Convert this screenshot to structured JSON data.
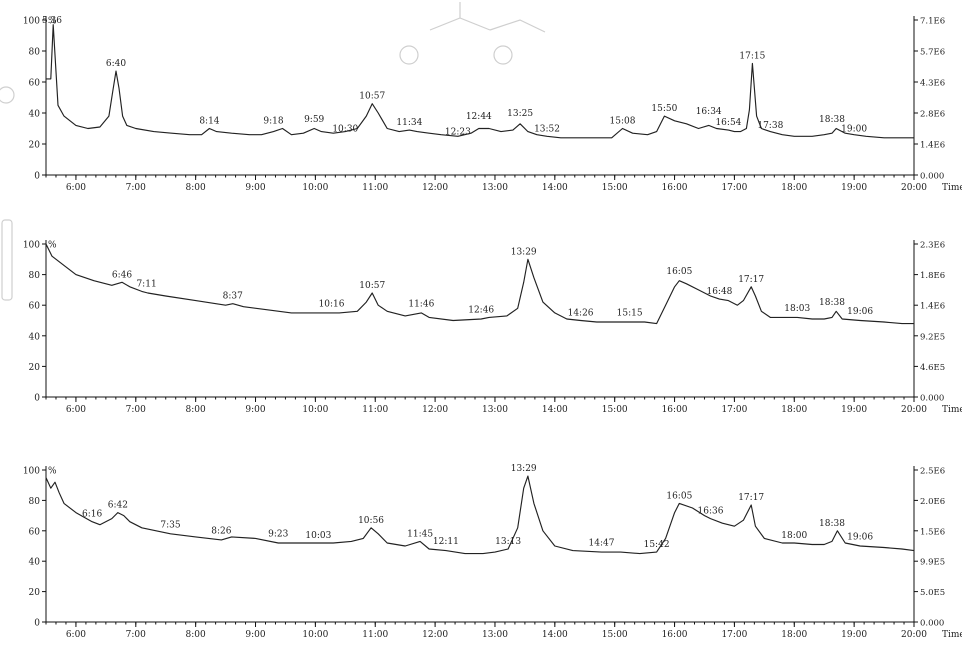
{
  "chart_data": [
    {
      "type": "line",
      "x_label": "Time",
      "xlim": [
        5.5,
        20.0
      ],
      "ylim": [
        0,
        100
      ],
      "left_ticks": [
        "0",
        "20",
        "40",
        "60",
        "80",
        "100"
      ],
      "right_ticks": [
        "0.000",
        "1.4E6",
        "2.8E6",
        "4.3E6",
        "5.7E6",
        "7.1E6"
      ],
      "x_ticks": [
        "6:00",
        "7:00",
        "8:00",
        "9:00",
        "10:00",
        "11:00",
        "12:00",
        "13:00",
        "14:00",
        "15:00",
        "16:00",
        "17:00",
        "18:00",
        "19:00",
        "20:00"
      ],
      "corner_label": "%",
      "series": [
        {
          "x": [
            5.5,
            5.58,
            5.62,
            5.7,
            5.8,
            6.0,
            6.2,
            6.4,
            6.55,
            6.62,
            6.67,
            6.72,
            6.78,
            6.85,
            7.0,
            7.3,
            7.6,
            7.9,
            8.1,
            8.23,
            8.35,
            8.6,
            8.9,
            9.1,
            9.3,
            9.45,
            9.6,
            9.8,
            9.98,
            10.1,
            10.3,
            10.5,
            10.7,
            10.85,
            10.95,
            11.05,
            11.2,
            11.4,
            11.57,
            11.7,
            11.9,
            12.1,
            12.38,
            12.6,
            12.73,
            12.9,
            13.1,
            13.3,
            13.42,
            13.55,
            13.7,
            13.87,
            14.1,
            14.4,
            14.7,
            14.95,
            15.13,
            15.3,
            15.55,
            15.7,
            15.83,
            16.0,
            16.2,
            16.4,
            16.57,
            16.7,
            16.9,
            17.0,
            17.1,
            17.2,
            17.25,
            17.3,
            17.37,
            17.45,
            17.6,
            17.8,
            18.0,
            18.3,
            18.5,
            18.63,
            18.7,
            18.85,
            19.0,
            19.2,
            19.5,
            19.8,
            20.0
          ],
          "y": [
            62,
            62,
            97,
            45,
            38,
            32,
            30,
            31,
            38,
            55,
            67,
            56,
            38,
            32,
            30,
            28,
            27,
            26,
            26,
            30,
            28,
            27,
            26,
            26,
            28,
            30,
            26,
            27,
            30,
            28,
            27,
            28,
            30,
            38,
            46,
            40,
            30,
            28,
            29,
            28,
            27,
            26,
            25,
            27,
            30,
            30,
            28,
            29,
            33,
            28,
            26,
            25,
            24,
            24,
            24,
            24,
            30,
            27,
            26,
            28,
            38,
            35,
            33,
            30,
            32,
            30,
            29,
            28,
            28,
            30,
            42,
            72,
            38,
            30,
            28,
            26,
            25,
            25,
            26,
            27,
            30,
            27,
            26,
            25,
            24,
            24,
            24
          ]
        }
      ],
      "annotations": [
        {
          "x": 5.6,
          "y": 95,
          "text": "5.36"
        },
        {
          "x": 6.67,
          "y": 67,
          "text": "6:40"
        },
        {
          "x": 8.23,
          "y": 30,
          "text": "8:14"
        },
        {
          "x": 9.3,
          "y": 30,
          "text": "9:18"
        },
        {
          "x": 9.98,
          "y": 31,
          "text": "9:59"
        },
        {
          "x": 10.5,
          "y": 25,
          "text": "10:30"
        },
        {
          "x": 10.95,
          "y": 46,
          "text": "10:57"
        },
        {
          "x": 11.57,
          "y": 29,
          "text": "11:34"
        },
        {
          "x": 12.38,
          "y": 23,
          "text": "12:23"
        },
        {
          "x": 12.73,
          "y": 33,
          "text": "12:44"
        },
        {
          "x": 13.42,
          "y": 35,
          "text": "13:25"
        },
        {
          "x": 13.87,
          "y": 25,
          "text": "13:52"
        },
        {
          "x": 15.13,
          "y": 30,
          "text": "15:08"
        },
        {
          "x": 15.83,
          "y": 38,
          "text": "15:50"
        },
        {
          "x": 16.57,
          "y": 36,
          "text": "16:34"
        },
        {
          "x": 16.9,
          "y": 29,
          "text": "16:54"
        },
        {
          "x": 17.3,
          "y": 72,
          "text": "17:15"
        },
        {
          "x": 17.6,
          "y": 27,
          "text": "17:38"
        },
        {
          "x": 18.63,
          "y": 31,
          "text": "18:38"
        },
        {
          "x": 19.0,
          "y": 25,
          "text": "19:00"
        }
      ]
    },
    {
      "type": "line",
      "x_label": "Time",
      "xlim": [
        5.5,
        20.0
      ],
      "ylim": [
        0,
        100
      ],
      "left_ticks": [
        "0",
        "20",
        "40",
        "60",
        "80",
        "100"
      ],
      "right_ticks": [
        "0.000",
        "4.6E5",
        "9.2E5",
        "1.4E6",
        "1.8E6",
        "2.3E6"
      ],
      "x_ticks": [
        "6:00",
        "7:00",
        "8:00",
        "9:00",
        "10:00",
        "11:00",
        "12:00",
        "13:00",
        "14:00",
        "15:00",
        "16:00",
        "17:00",
        "18:00",
        "19:00",
        "20:00"
      ],
      "corner_label": "%",
      "series": [
        {
          "x": [
            5.5,
            5.6,
            5.8,
            6.0,
            6.3,
            6.6,
            6.77,
            6.9,
            7.1,
            7.2,
            7.5,
            8.0,
            8.5,
            8.62,
            8.8,
            9.2,
            9.6,
            10.0,
            10.2,
            10.4,
            10.7,
            10.85,
            10.95,
            11.05,
            11.2,
            11.5,
            11.77,
            11.9,
            12.3,
            12.77,
            12.9,
            13.2,
            13.38,
            13.48,
            13.55,
            13.65,
            13.8,
            14.0,
            14.2,
            14.43,
            14.7,
            15.0,
            15.25,
            15.5,
            15.7,
            15.85,
            16.0,
            16.08,
            16.2,
            16.4,
            16.6,
            16.75,
            16.9,
            17.05,
            17.15,
            17.28,
            17.35,
            17.45,
            17.6,
            17.8,
            18.05,
            18.3,
            18.5,
            18.63,
            18.7,
            18.8,
            19.1,
            19.5,
            19.8,
            20.0
          ],
          "y": [
            100,
            92,
            86,
            80,
            76,
            73,
            75,
            72,
            69,
            68,
            66,
            63,
            60,
            61,
            59,
            57,
            55,
            55,
            55,
            55,
            56,
            62,
            68,
            60,
            56,
            53,
            55,
            52,
            50,
            51,
            52,
            53,
            58,
            75,
            90,
            78,
            62,
            55,
            51,
            50,
            49,
            49,
            49,
            49,
            48,
            60,
            72,
            76,
            74,
            70,
            66,
            64,
            63,
            60,
            63,
            72,
            66,
            56,
            52,
            52,
            52,
            51,
            51,
            52,
            56,
            51,
            50,
            49,
            48,
            48
          ]
        }
      ],
      "annotations": [
        {
          "x": 6.77,
          "y": 75,
          "text": "6:46"
        },
        {
          "x": 7.18,
          "y": 69,
          "text": "7:11"
        },
        {
          "x": 8.62,
          "y": 61,
          "text": "8:37"
        },
        {
          "x": 10.27,
          "y": 56,
          "text": "10:16"
        },
        {
          "x": 10.95,
          "y": 68,
          "text": "10:57"
        },
        {
          "x": 11.77,
          "y": 56,
          "text": "11:46"
        },
        {
          "x": 12.77,
          "y": 52,
          "text": "12:46"
        },
        {
          "x": 13.48,
          "y": 90,
          "text": "13:29"
        },
        {
          "x": 14.43,
          "y": 50,
          "text": "14:26"
        },
        {
          "x": 15.25,
          "y": 50,
          "text": "15:15"
        },
        {
          "x": 16.08,
          "y": 77,
          "text": "16:05"
        },
        {
          "x": 16.75,
          "y": 64,
          "text": "16:48"
        },
        {
          "x": 17.28,
          "y": 72,
          "text": "17:17"
        },
        {
          "x": 18.05,
          "y": 53,
          "text": "18:03"
        },
        {
          "x": 18.63,
          "y": 57,
          "text": "18:38"
        },
        {
          "x": 19.1,
          "y": 51,
          "text": "19:06"
        }
      ]
    },
    {
      "type": "line",
      "x_label": "Time",
      "xlim": [
        5.5,
        20.0
      ],
      "ylim": [
        0,
        100
      ],
      "left_ticks": [
        "0",
        "20",
        "40",
        "60",
        "80",
        "100"
      ],
      "right_ticks": [
        "0.000",
        "5.0E5",
        "9.9E5",
        "1.5E6",
        "2.0E6",
        "2.5E6"
      ],
      "x_ticks": [
        "6:00",
        "7:00",
        "8:00",
        "9:00",
        "10:00",
        "11:00",
        "12:00",
        "13:00",
        "14:00",
        "15:00",
        "16:00",
        "17:00",
        "18:00",
        "19:00",
        "20:00"
      ],
      "corner_label": "%",
      "series": [
        {
          "x": [
            5.5,
            5.58,
            5.65,
            5.72,
            5.8,
            6.0,
            6.27,
            6.4,
            6.6,
            6.7,
            6.8,
            6.9,
            7.1,
            7.58,
            8.0,
            8.43,
            8.6,
            9.0,
            9.38,
            9.6,
            10.05,
            10.3,
            10.6,
            10.8,
            10.93,
            11.05,
            11.2,
            11.5,
            11.75,
            11.9,
            12.18,
            12.5,
            12.8,
            13.0,
            13.22,
            13.38,
            13.48,
            13.55,
            13.65,
            13.8,
            14.0,
            14.3,
            14.78,
            15.1,
            15.42,
            15.7,
            15.85,
            16.0,
            16.08,
            16.3,
            16.5,
            16.6,
            16.8,
            17.0,
            17.15,
            17.28,
            17.35,
            17.5,
            17.8,
            18.0,
            18.3,
            18.5,
            18.63,
            18.72,
            18.85,
            19.1,
            19.5,
            19.8,
            20.0
          ],
          "y": [
            95,
            88,
            92,
            85,
            78,
            72,
            66,
            64,
            68,
            72,
            70,
            66,
            62,
            58,
            56,
            54,
            56,
            55,
            52,
            52,
            52,
            52,
            53,
            55,
            62,
            58,
            52,
            50,
            53,
            48,
            47,
            45,
            45,
            46,
            48,
            62,
            88,
            96,
            78,
            60,
            50,
            47,
            46,
            46,
            45,
            46,
            55,
            72,
            78,
            75,
            70,
            68,
            65,
            63,
            67,
            77,
            63,
            55,
            52,
            52,
            51,
            51,
            53,
            60,
            52,
            50,
            49,
            48,
            47
          ]
        }
      ],
      "annotations": [
        {
          "x": 6.27,
          "y": 66,
          "text": "6:16"
        },
        {
          "x": 6.7,
          "y": 72,
          "text": "6:42"
        },
        {
          "x": 7.58,
          "y": 59,
          "text": "7:35"
        },
        {
          "x": 8.43,
          "y": 55,
          "text": "8:26"
        },
        {
          "x": 9.38,
          "y": 53,
          "text": "9:23"
        },
        {
          "x": 10.05,
          "y": 52,
          "text": "10:03"
        },
        {
          "x": 10.93,
          "y": 62,
          "text": "10:56"
        },
        {
          "x": 11.75,
          "y": 53,
          "text": "11:45"
        },
        {
          "x": 12.18,
          "y": 48,
          "text": "12:11"
        },
        {
          "x": 13.22,
          "y": 48,
          "text": "13:13"
        },
        {
          "x": 13.48,
          "y": 96,
          "text": "13:29"
        },
        {
          "x": 14.78,
          "y": 47,
          "text": "14:47"
        },
        {
          "x": 15.7,
          "y": 46,
          "text": "15:42"
        },
        {
          "x": 16.08,
          "y": 78,
          "text": "16:05"
        },
        {
          "x": 16.6,
          "y": 68,
          "text": "16:36"
        },
        {
          "x": 17.28,
          "y": 77,
          "text": "17:17"
        },
        {
          "x": 18.0,
          "y": 52,
          "text": "18:00"
        },
        {
          "x": 18.63,
          "y": 60,
          "text": "18:38"
        },
        {
          "x": 19.1,
          "y": 51,
          "text": "19:06"
        }
      ]
    }
  ]
}
